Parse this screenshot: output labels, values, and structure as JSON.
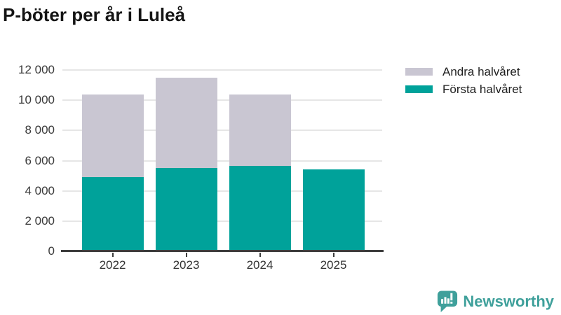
{
  "title": "P-böter per år i Luleå",
  "chart_data": {
    "type": "bar",
    "stacked": true,
    "title": "P-böter per år i Luleå",
    "categories": [
      "2022",
      "2023",
      "2024",
      "2025"
    ],
    "series": [
      {
        "name": "Första halvåret",
        "color": "#00a29a",
        "values": [
          4900,
          5500,
          5650,
          5400
        ]
      },
      {
        "name": "Andra halvåret",
        "color": "#c9c6d2",
        "values": [
          5500,
          6000,
          4750,
          0
        ]
      }
    ],
    "ylim": [
      0,
      12000
    ],
    "ytick_step": 2000,
    "ytick_labels": [
      "0",
      "2 000",
      "4 000",
      "6 000",
      "8 000",
      "10 000",
      "12 000"
    ],
    "grid": true,
    "legend_position": "top-right",
    "legend": [
      {
        "label": "Andra halvåret",
        "color": "#c9c6d2"
      },
      {
        "label": "Första halvåret",
        "color": "#00a29a"
      }
    ]
  },
  "branding": {
    "name": "Newsworthy",
    "color": "#3fa09b",
    "icon": "newsworthy-chart-bubble-icon"
  }
}
